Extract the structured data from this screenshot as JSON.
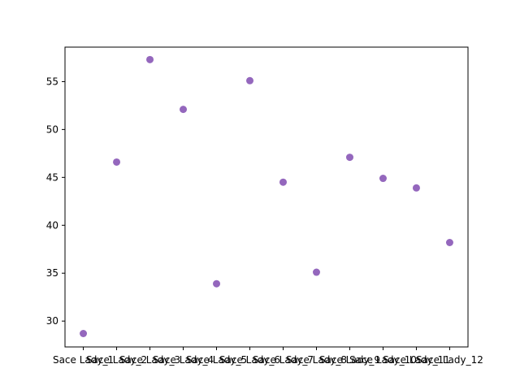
{
  "chart_data": {
    "type": "scatter",
    "title": "",
    "xlabel": "",
    "ylabel": "",
    "categories": [
      "Sace Lady_1",
      "Sace Lady_2",
      "Sace Lady_3",
      "Sace Lady_4",
      "Sace Lady_5",
      "Sace Lady_6",
      "Sace Lady_7",
      "Sace Lady_8",
      "Sace Lady_9",
      "Sace Lady_10",
      "Sace Lady_11",
      "Sace Lady_12"
    ],
    "values": [
      28.7,
      46.6,
      57.3,
      52.1,
      33.9,
      55.1,
      44.5,
      35.1,
      47.1,
      44.9,
      43.9,
      38.2
    ],
    "ylim": [
      27.3,
      58.6
    ],
    "yticks": [
      30,
      35,
      40,
      45,
      50,
      55
    ],
    "grid": false,
    "legend": "none",
    "marker_color": "#9467bd"
  }
}
